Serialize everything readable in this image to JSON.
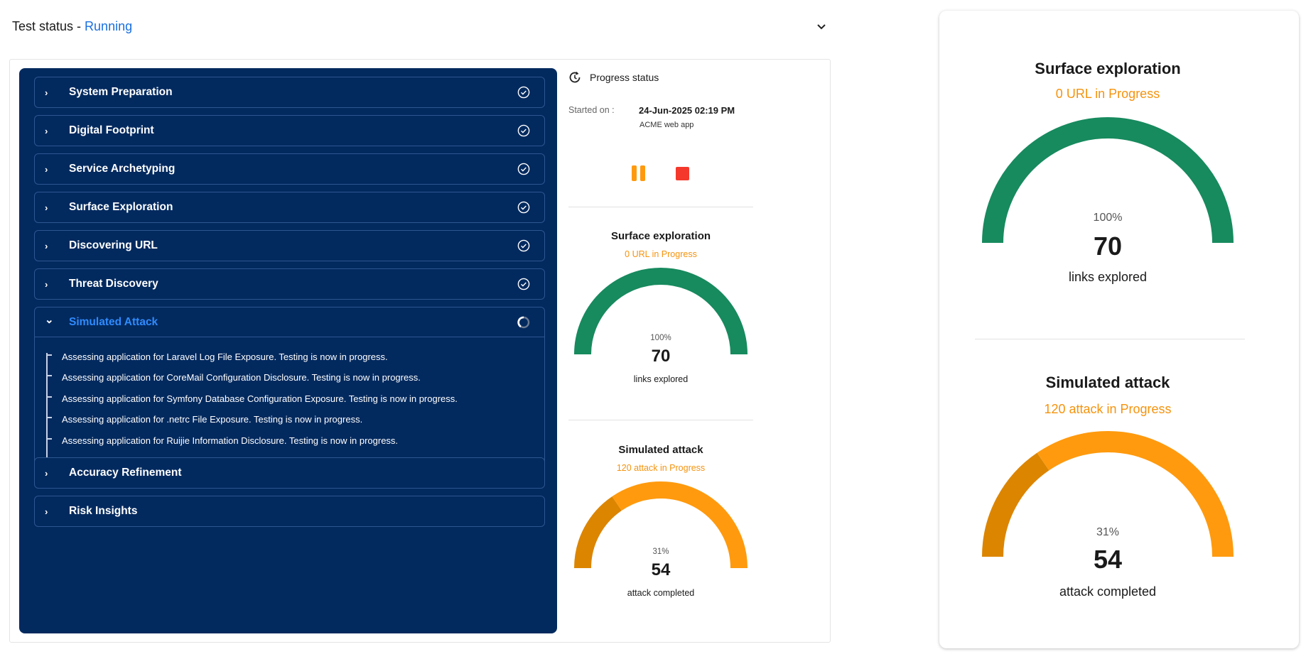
{
  "header": {
    "label": "Test status - ",
    "status": "Running",
    "collapse_icon": "chevron-down-icon"
  },
  "steps": [
    {
      "label": "System Preparation",
      "state": "done"
    },
    {
      "label": "Digital Footprint",
      "state": "done"
    },
    {
      "label": "Service Archetyping",
      "state": "done"
    },
    {
      "label": "Surface Exploration",
      "state": "done"
    },
    {
      "label": "Discovering URL",
      "state": "done"
    },
    {
      "label": "Threat Discovery",
      "state": "done"
    },
    {
      "label": "Simulated Attack",
      "state": "running",
      "logs": [
        "Assessing application for Laravel Log File Exposure. Testing is now in progress.",
        "Assessing application for CoreMail Configuration Disclosure. Testing is now in progress.",
        "Assessing application for Symfony Database Configuration Exposure. Testing is now in progress.",
        "Assessing application for .netrc File Exposure. Testing is now in progress.",
        "Assessing application for Ruijie Information Disclosure. Testing is now in progress."
      ]
    },
    {
      "label": "Accuracy Refinement",
      "state": "pending"
    },
    {
      "label": "Risk Insights",
      "state": "pending"
    }
  ],
  "progress": {
    "title": "Progress status",
    "started_label": "Started on :",
    "started_value": "24-Jun-2025 02:19 PM",
    "app": "ACME web app"
  },
  "gauges": {
    "surface": {
      "title": "Surface exploration",
      "subtitle": "0 URL in Progress",
      "percent_label": "100%",
      "percent": 100,
      "value": "70",
      "caption": "links explored",
      "color": "#178a5e",
      "color_dark": "#178a5e"
    },
    "attack": {
      "title": "Simulated attack",
      "subtitle": "120 attack in Progress",
      "percent_label": "31%",
      "percent": 31,
      "value": "54",
      "caption": "attack completed",
      "color": "#ff9a0e",
      "color_dark": "#dc8500"
    }
  },
  "colors": {
    "panel": "#032a5f",
    "accent": "#1a6fe0",
    "orange": "#f5930d",
    "stop": "#f4392c"
  }
}
